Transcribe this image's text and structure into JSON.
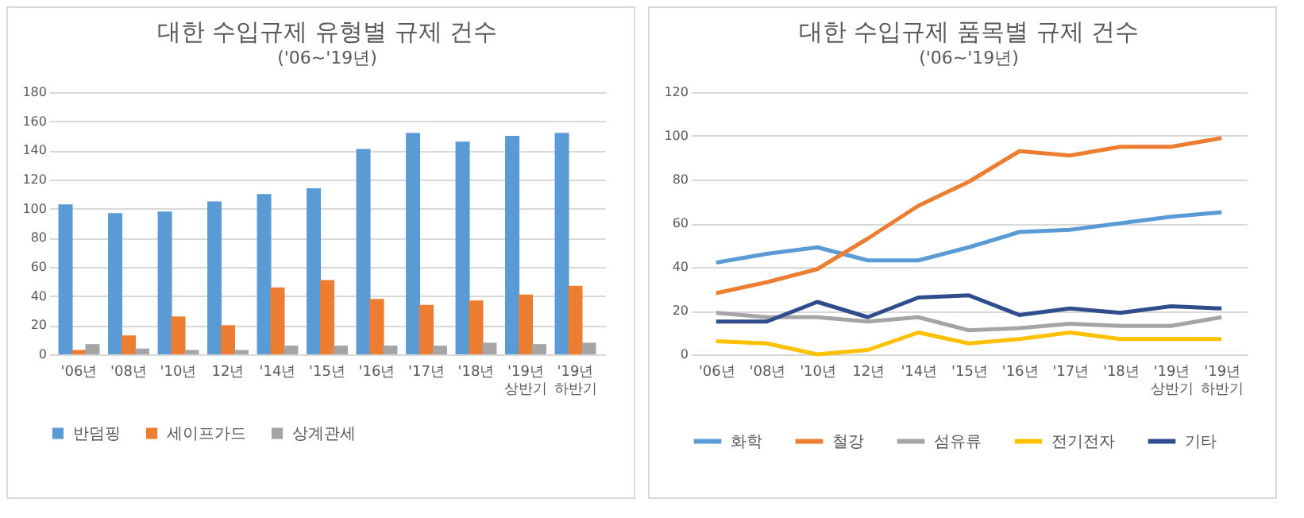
{
  "chart_data": [
    {
      "type": "bar",
      "title": "대한 수입규제 유형별 규제 건수",
      "subtitle": "('06~'19년)",
      "categories": [
        "'06년",
        "'08년",
        "'10년",
        "12년",
        "'14년",
        "'15년",
        "'16년",
        "'17년",
        "'18년",
        "'19년\n상반기",
        "'19년\n하반기"
      ],
      "series": [
        {
          "name": "반덤핑",
          "color": "#5b9bd5",
          "values": [
            103,
            97,
            98,
            105,
            110,
            114,
            141,
            152,
            146,
            150,
            152
          ]
        },
        {
          "name": "세이프가드",
          "color": "#ed7d31",
          "values": [
            3,
            13,
            26,
            20,
            46,
            51,
            38,
            34,
            37,
            41,
            47
          ]
        },
        {
          "name": "상계관세",
          "color": "#a5a5a5",
          "values": [
            7,
            4,
            3,
            3,
            6,
            6,
            6,
            6,
            8,
            7,
            8
          ]
        }
      ],
      "ylim": [
        0,
        180
      ],
      "yticks": [
        0,
        20,
        40,
        60,
        80,
        100,
        120,
        140,
        160,
        180
      ],
      "grid": "y",
      "legend": "bottom"
    },
    {
      "type": "line",
      "title": "대한 수입규제 품목별 규제 건수",
      "subtitle": "('06~'19년)",
      "categories": [
        "'06년",
        "'08년",
        "'10년",
        "12년",
        "'14년",
        "'15년",
        "'16년",
        "'17년",
        "'18년",
        "'19년\n상반기",
        "'19년\n하반기"
      ],
      "series": [
        {
          "name": "화학",
          "color": "#5b9bd5",
          "values": [
            42,
            46,
            49,
            43,
            43,
            49,
            56,
            57,
            60,
            63,
            65
          ]
        },
        {
          "name": "철강",
          "color": "#ed7d31",
          "values": [
            28,
            33,
            39,
            53,
            68,
            79,
            93,
            91,
            95,
            95,
            99
          ]
        },
        {
          "name": "섬유류",
          "color": "#a5a5a5",
          "values": [
            19,
            17,
            17,
            15,
            17,
            11,
            12,
            14,
            13,
            13,
            17
          ]
        },
        {
          "name": "전기전자",
          "color": "#ffc000",
          "values": [
            6,
            5,
            0,
            2,
            10,
            5,
            7,
            10,
            7,
            7,
            7
          ]
        },
        {
          "name": "기타",
          "color": "#2f4d8c",
          "values": [
            15,
            15,
            24,
            17,
            26,
            27,
            18,
            21,
            19,
            22,
            21
          ]
        }
      ],
      "ylim": [
        0,
        120
      ],
      "yticks": [
        0,
        20,
        40,
        60,
        80,
        100,
        120
      ],
      "grid": "y",
      "legend": "bottom"
    }
  ]
}
